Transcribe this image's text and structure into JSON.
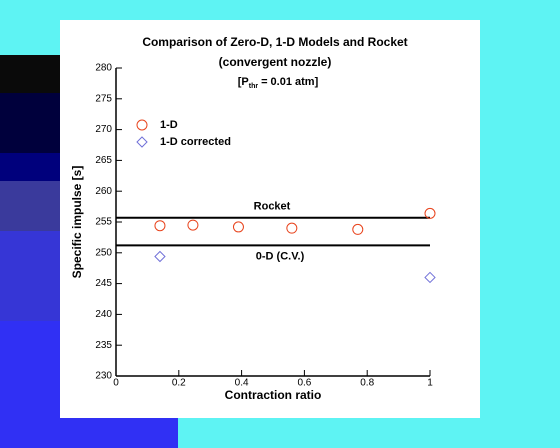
{
  "chart_data": {
    "type": "scatter",
    "title": "Comparison of Zero-D, 1-D Models and Rocket",
    "subtitle": "(convergent nozzle)",
    "note": [
      "[P",
      "thr",
      "= 0.01 atm]"
    ],
    "x_label": "Contraction ratio",
    "y_label": "Specific impulse [s]",
    "xlim": [
      0,
      1
    ],
    "xticks": [
      0,
      0.2,
      0.4,
      0.6,
      0.8,
      1
    ],
    "ylim": [
      230,
      280
    ],
    "yticks": [
      230,
      235,
      240,
      245,
      250,
      255,
      260,
      265,
      270,
      275,
      280
    ],
    "legend": "upper left",
    "series": [
      {
        "name": "1-D",
        "marker": "circle",
        "color": "#e8431c",
        "x": [
          0.14,
          0.245,
          0.39,
          0.56,
          0.77,
          1.0
        ],
        "values": [
          254.4,
          254.5,
          254.2,
          254.0,
          253.8,
          256.4
        ]
      },
      {
        "name": "1-D corrected",
        "marker": "diamond",
        "color": "#7070d8",
        "x": [
          0.14,
          1.0
        ],
        "values": [
          249.4,
          246.0
        ]
      }
    ],
    "reference_lines": [
      {
        "name": "Rocket",
        "value": 255.7
      },
      {
        "name": "0-D (C.V.)",
        "value": 251.2
      }
    ]
  }
}
